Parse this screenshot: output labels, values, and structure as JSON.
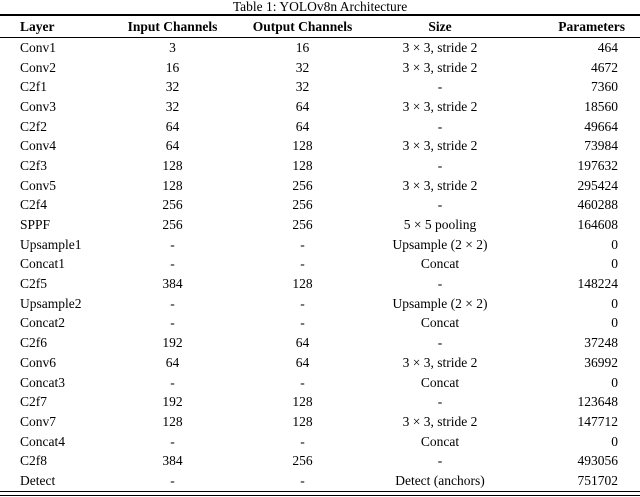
{
  "caption": "Table 1: YOLOv8n Architecture",
  "table": {
    "headers": [
      "Layer",
      "Input Channels",
      "Output Channels",
      "Size",
      "Parameters"
    ],
    "rows": [
      [
        "Conv1",
        "3",
        "16",
        "3 × 3, stride 2",
        "464"
      ],
      [
        "Conv2",
        "16",
        "32",
        "3 × 3, stride 2",
        "4672"
      ],
      [
        "C2f1",
        "32",
        "32",
        "-",
        "7360"
      ],
      [
        "Conv3",
        "32",
        "64",
        "3 × 3, stride 2",
        "18560"
      ],
      [
        "C2f2",
        "64",
        "64",
        "-",
        "49664"
      ],
      [
        "Conv4",
        "64",
        "128",
        "3 × 3, stride 2",
        "73984"
      ],
      [
        "C2f3",
        "128",
        "128",
        "-",
        "197632"
      ],
      [
        "Conv5",
        "128",
        "256",
        "3 × 3, stride 2",
        "295424"
      ],
      [
        "C2f4",
        "256",
        "256",
        "-",
        "460288"
      ],
      [
        "SPPF",
        "256",
        "256",
        "5 × 5 pooling",
        "164608"
      ],
      [
        "Upsample1",
        "-",
        "-",
        "Upsample (2 × 2)",
        "0"
      ],
      [
        "Concat1",
        "-",
        "-",
        "Concat",
        "0"
      ],
      [
        "C2f5",
        "384",
        "128",
        "-",
        "148224"
      ],
      [
        "Upsample2",
        "-",
        "-",
        "Upsample (2 × 2)",
        "0"
      ],
      [
        "Concat2",
        "-",
        "-",
        "Concat",
        "0"
      ],
      [
        "C2f6",
        "192",
        "64",
        "-",
        "37248"
      ],
      [
        "Conv6",
        "64",
        "64",
        "3 × 3, stride 2",
        "36992"
      ],
      [
        "Concat3",
        "-",
        "-",
        "Concat",
        "0"
      ],
      [
        "C2f7",
        "192",
        "128",
        "-",
        "123648"
      ],
      [
        "Conv7",
        "128",
        "128",
        "3 × 3, stride 2",
        "147712"
      ],
      [
        "Concat4",
        "-",
        "-",
        "Concat",
        "0"
      ],
      [
        "C2f8",
        "384",
        "256",
        "-",
        "493056"
      ],
      [
        "Detect",
        "-",
        "-",
        "Detect (anchors)",
        "751702"
      ]
    ]
  },
  "colors": {
    "text": "#000000",
    "background": "#ffffff",
    "rule": "#000000"
  }
}
